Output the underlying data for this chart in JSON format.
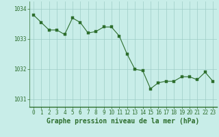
{
  "x": [
    0,
    1,
    2,
    3,
    4,
    5,
    6,
    7,
    8,
    9,
    10,
    11,
    12,
    13,
    14,
    15,
    16,
    17,
    18,
    19,
    20,
    21,
    22,
    23
  ],
  "y": [
    1033.8,
    1033.55,
    1033.3,
    1033.3,
    1033.15,
    1033.7,
    1033.55,
    1033.2,
    1033.25,
    1033.4,
    1033.4,
    1033.1,
    1032.5,
    1032.0,
    1031.95,
    1031.35,
    1031.55,
    1031.6,
    1031.6,
    1031.75,
    1031.75,
    1031.65,
    1031.9,
    1031.6
  ],
  "line_color": "#2d6e2d",
  "marker_color": "#2d6e2d",
  "background_color": "#c8ede8",
  "plot_bg_color": "#c8ede8",
  "grid_color": "#9ecdc6",
  "tick_label_color": "#2d6e2d",
  "xlabel": "Graphe pression niveau de la mer (hPa)",
  "xlabel_color": "#2d6e2d",
  "ylim": [
    1030.75,
    1034.25
  ],
  "yticks": [
    1031,
    1032,
    1033,
    1034
  ],
  "xticks": [
    0,
    1,
    2,
    3,
    4,
    5,
    6,
    7,
    8,
    9,
    10,
    11,
    12,
    13,
    14,
    15,
    16,
    17,
    18,
    19,
    20,
    21,
    22,
    23
  ],
  "tick_fontsize": 5.5,
  "xlabel_fontsize": 7.0,
  "marker_size": 2.2,
  "line_width": 0.8
}
